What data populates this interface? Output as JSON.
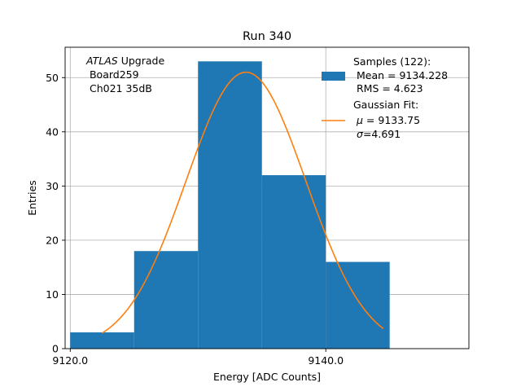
{
  "chart_data": {
    "type": "bar",
    "title": "Run 340",
    "xlabel": "Energy [ADC Counts]",
    "ylabel": "Entries",
    "xlim": [
      9119.6,
      9151.2
    ],
    "ylim": [
      0,
      55.6
    ],
    "grid": true,
    "x_ticks": [
      9120,
      9140
    ],
    "x_tick_labels": [
      "9120.0",
      "9140.0"
    ],
    "y_ticks": [
      0,
      10,
      20,
      30,
      40,
      50
    ],
    "y_tick_labels": [
      "0",
      "10",
      "20",
      "30",
      "40",
      "50"
    ],
    "histogram": {
      "bin_edges": [
        9120,
        9125,
        9130,
        9135,
        9140,
        9145
      ],
      "counts": [
        3,
        18,
        53,
        32,
        16
      ],
      "color": "#1f77b4"
    },
    "fit": {
      "mu": 9133.75,
      "sigma": 4.691,
      "amplitude": 51.0,
      "x_range": [
        9122.5,
        9144.5
      ],
      "color": "#ff7f0e"
    },
    "annotation": {
      "lines": [
        "ATLAS",
        " Upgrade",
        " Board259",
        " Ch021 35dB"
      ]
    },
    "legend": {
      "placement": "top-right",
      "samples": {
        "title": "Samples (122):",
        "mean_line": " Mean = 9134.228",
        "rms_line": " RMS = 4.623"
      },
      "fit": {
        "title": "Gaussian Fit:",
        "mu_symbol": "μ",
        "mu_value": " = 9133.75",
        "sigma_symbol": "σ",
        "sigma_value": "=4.691"
      }
    }
  }
}
